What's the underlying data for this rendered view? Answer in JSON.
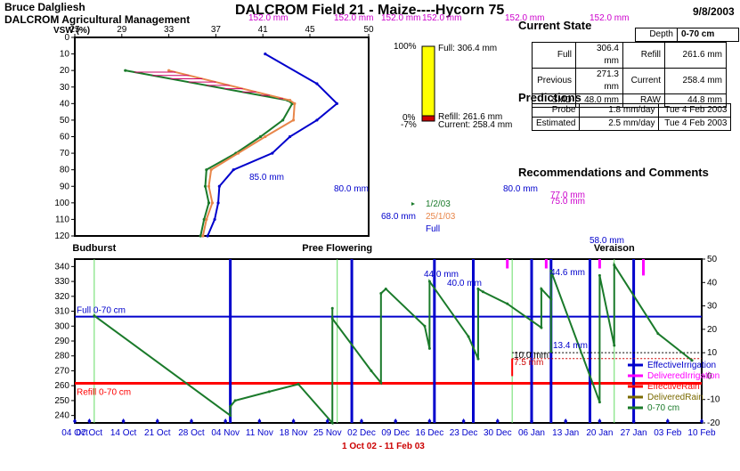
{
  "header": {
    "user": "Bruce Dalgliesh",
    "company": "DALCROM Agricultural Management",
    "title": "DALCROM Field 21 - Maize----Hycorn  75",
    "date": "9/8/2003",
    "magenta_annotations": [
      "152.0 mm",
      "152.0 mm",
      "152.0 mm",
      "152.0 mm",
      "152.0 mm",
      "152.0 mm"
    ]
  },
  "current_state": {
    "title": "Current State",
    "depth_label": "Depth",
    "depth_value": "0-70 cm",
    "rows": [
      {
        "label": "Full",
        "value": "306.4 mm",
        "label2": "Refill",
        "value2": "261.6 mm"
      },
      {
        "label": "Previous",
        "value": "271.3 mm",
        "label2": "Current",
        "value2": "258.4 mm"
      },
      {
        "label": "SMD",
        "value": "48.0 mm",
        "label2": "RAW",
        "value2": "44.8 mm"
      }
    ]
  },
  "predictions": {
    "title": "Predictions",
    "rows": [
      {
        "label": "Probe",
        "rate": "1.8 mm/day",
        "date": "Tue 4 Feb 2003"
      },
      {
        "label": "Estimated",
        "rate": "2.5 mm/day",
        "date": "Tue 4 Feb 2003"
      }
    ]
  },
  "recommendations": {
    "title": "Recommendations and Comments"
  },
  "chart_data": [
    {
      "type": "line",
      "name": "profile",
      "xlabel": "VSW (%)",
      "xlim": [
        25,
        50
      ],
      "ylim": [
        0,
        120
      ],
      "xticks": [
        25,
        29,
        33,
        37,
        41,
        45,
        50
      ],
      "xtick_labels": [
        "25",
        "29",
        "33",
        "37",
        "41",
        "45",
        "50"
      ],
      "yticks": [
        0,
        10,
        20,
        30,
        40,
        50,
        60,
        70,
        80,
        90,
        100,
        110,
        120
      ],
      "y_reversed": true,
      "series": [
        {
          "name": "1/2/03",
          "color": "#1a7a2a",
          "x": [
            29.3,
            43.1,
            43.5,
            42.7,
            40.8,
            38.7,
            36.2,
            36.1,
            36.4,
            36.0,
            35.7
          ],
          "y": [
            20,
            38,
            40,
            50,
            60,
            70,
            80,
            90,
            100,
            110,
            120
          ]
        },
        {
          "name": "25/1/03",
          "color": "#e8864a",
          "x": [
            33.0,
            43.3,
            43.7,
            43.6,
            41.2,
            38.9,
            36.6,
            36.4,
            36.7,
            36.2,
            35.9
          ],
          "y": [
            20,
            38,
            40,
            50,
            60,
            70,
            80,
            90,
            100,
            110,
            120
          ]
        },
        {
          "name": "Full",
          "color": "#0000cc",
          "x": [
            41.2,
            45.6,
            47.3,
            45.6,
            43.3,
            41.8,
            38.5,
            37.3,
            37.2,
            36.9,
            36.3
          ],
          "y": [
            10,
            28,
            40,
            50,
            60,
            70,
            80,
            90,
            100,
            110,
            120
          ]
        }
      ],
      "annotations": [
        "85.0 mm",
        "80.0 mm",
        "80.0 mm",
        "68.0 mm",
        "77.0 mm",
        "75.0 mm"
      ]
    },
    {
      "type": "bar",
      "name": "bucket",
      "full_label": "Full: 306.4 mm",
      "refill_label": "Refill: 261.6 mm",
      "current_label": "Current: 258.4 mm",
      "pct_100": "100%",
      "pct_0": "0%",
      "pct_neg": "-7%",
      "fill_fraction": 0,
      "color_fill": "#ffff00",
      "color_deficit": "#cc0000"
    },
    {
      "type": "line",
      "name": "timeline",
      "x_range_label": "1 Oct 02 - 11 Feb 03",
      "xtick_labels": [
        "04 Oct",
        "07 Oct",
        "14 Oct",
        "21 Oct",
        "28 Oct",
        "04 Nov",
        "11 Nov",
        "18 Nov",
        "25 Nov",
        "02 Dec",
        "09 Dec",
        "16 Dec",
        "23 Dec",
        "30 Dec",
        "06 Jan",
        "13 Jan",
        "20 Jan",
        "27 Jan",
        "03 Feb",
        "10 Feb"
      ],
      "xlim_day": [
        3,
        132
      ],
      "ylim": [
        235,
        345
      ],
      "yticks": [
        240,
        250,
        260,
        270,
        280,
        290,
        300,
        310,
        320,
        330,
        340
      ],
      "y2lim": [
        -20,
        50
      ],
      "y2ticks": [
        -20,
        -10,
        0,
        10,
        20,
        30,
        40,
        50
      ],
      "full": 306.4,
      "full_label": "Full 0-70 cm",
      "refill": 261.6,
      "refill_label": "Refill 0-70 cm",
      "stages": [
        {
          "label": "Budburst",
          "day": 7
        },
        {
          "label": "Pree Flowering",
          "day": 57
        },
        {
          "label": "Veraison",
          "day": 114
        }
      ],
      "stage_lines_day": [
        7,
        57,
        93,
        114
      ],
      "irrigation_day": [
        35,
        60,
        77,
        85,
        97,
        101,
        109,
        118
      ],
      "irrigation_magenta": [
        {
          "day": 92,
          "from": 46,
          "to": 50
        },
        {
          "day": 100,
          "from": 46,
          "to": 50
        },
        {
          "day": 111,
          "from": 46,
          "to": 50
        },
        {
          "day": 120,
          "from": 43,
          "to": 50
        }
      ],
      "rain_day": [
        {
          "day": 93,
          "value": 10.0,
          "value2": 7.5
        }
      ],
      "rain_annotations": [
        "10.0 mm",
        "7.5 mm"
      ],
      "irr_annotations": [
        "44.0 mm",
        "40.0 mm",
        "44.6 mm",
        "13.4 mm",
        "58.0 mm"
      ],
      "soil_series": {
        "name": "0-70 cm",
        "color": "#1a7a2a",
        "day": [
          7,
          35,
          35,
          36,
          43,
          49,
          56,
          56,
          56,
          64,
          66,
          66,
          67,
          75,
          76,
          76,
          84,
          86,
          86,
          87,
          92,
          99,
          99,
          101,
          101,
          101,
          111,
          111,
          114,
          114,
          123,
          130
        ],
        "value": [
          307,
          240,
          246,
          250,
          256,
          261,
          235,
          312,
          305,
          270,
          262,
          322,
          325,
          300,
          285,
          330,
          293,
          278,
          325,
          323,
          315,
          299,
          325,
          318,
          283,
          337,
          249,
          334,
          287,
          341,
          295,
          277
        ]
      },
      "legend": [
        "EffectiveIrrigation",
        "DeliveredIrrigation",
        "EffectiveRain",
        "DeliveredRain",
        "0-70 cm"
      ],
      "legend_colors": [
        "#0000cc",
        "#ff00ff",
        "#ff0000",
        "#7a6a00",
        "#1a7a2a"
      ]
    }
  ]
}
